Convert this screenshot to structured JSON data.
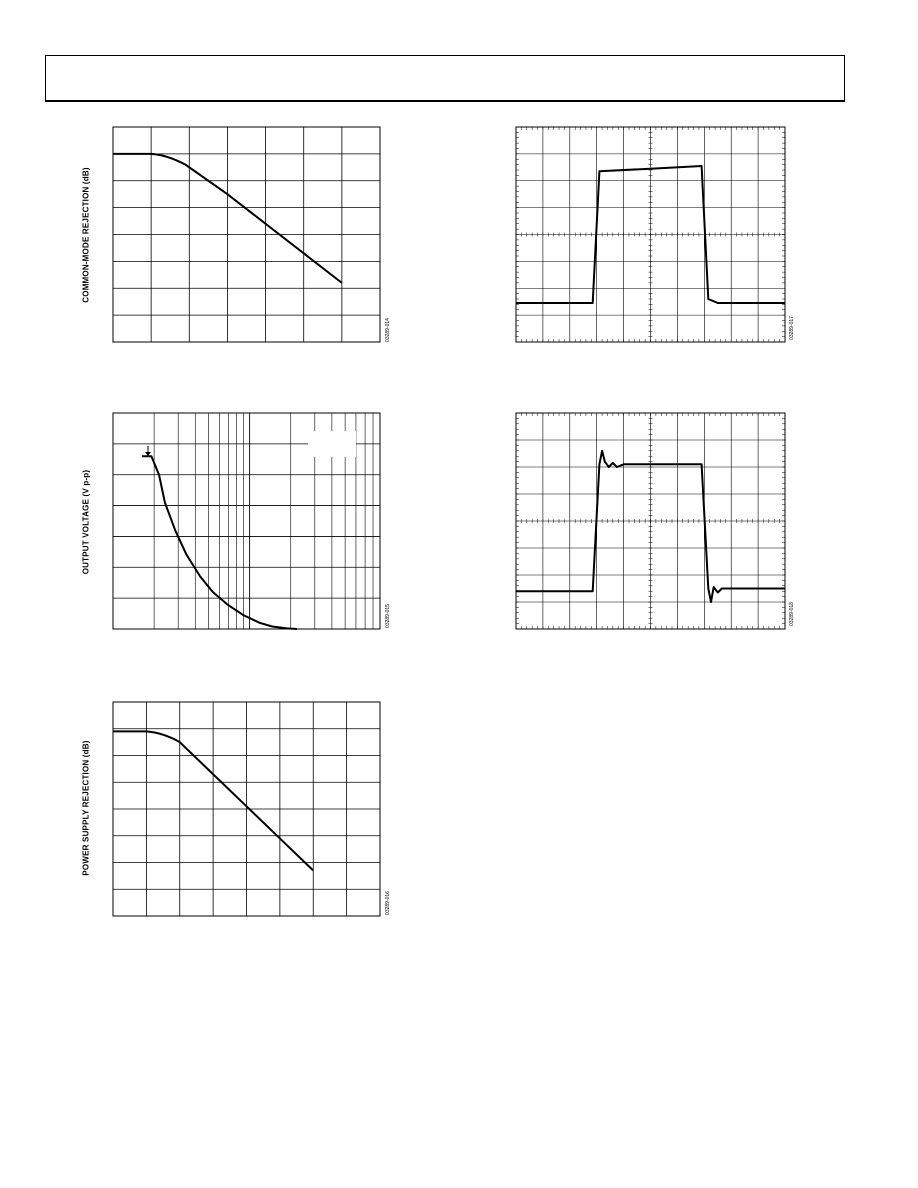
{
  "labels": {
    "cmr_ylabel": "COMMON-MODE REJECTION (dB)",
    "output_voltage_ylabel": "OUTPUT VOLTAGE (V p-p)",
    "psr_ylabel": "POWER SUPPLY REJECTION (dB)"
  },
  "figure_ids": {
    "cmr": "03289-014",
    "output_voltage": "03289-015",
    "psr": "03289-016",
    "pulse_large": "03289-017",
    "pulse_small": "03289-018"
  },
  "chart_data": [
    {
      "type": "line",
      "ylabel": "COMMON-MODE REJECTION (dB)",
      "x_divisions": 7,
      "y_divisions": 8,
      "series": [
        {
          "x": [
            0,
            1.0,
            1.4,
            1.9,
            3.0,
            4.0,
            5.0,
            6.0
          ],
          "y": [
            7.0,
            7.0,
            6.97,
            6.6,
            5.5,
            4.4,
            3.3,
            2.2
          ]
        }
      ]
    },
    {
      "type": "line",
      "ylabel": "OUTPUT VOLTAGE (V p-p)",
      "x_scale": "log",
      "y_divisions": 7,
      "series": [
        {
          "x": [
            1,
            1.18,
            1.35,
            1.5,
            1.8,
            2.2,
            2.8,
            3.5,
            4.5,
            6,
            8,
            10,
            13,
            15.5
          ],
          "y": [
            5.6,
            5.6,
            5.0,
            4.1,
            3.2,
            2.4,
            1.7,
            1.2,
            0.8,
            0.45,
            0.2,
            0.08,
            0.02,
            0.0
          ]
        }
      ]
    },
    {
      "type": "line",
      "ylabel": "POWER SUPPLY REJECTION (dB)",
      "x_divisions": 8,
      "y_divisions": 8,
      "series": [
        {
          "x": [
            0,
            1.0,
            1.5,
            2.0,
            3.0,
            4.0,
            5.0,
            6.0
          ],
          "y": [
            6.9,
            6.9,
            6.85,
            6.5,
            5.3,
            4.1,
            2.9,
            1.7
          ]
        }
      ]
    },
    {
      "type": "line",
      "x_divisions": 10,
      "y_divisions": 8,
      "series": [
        {
          "x": [
            0,
            2.85,
            3.1,
            5.0,
            6.9,
            7.15,
            7.5,
            10
          ],
          "y": [
            1.45,
            1.45,
            6.35,
            6.45,
            6.55,
            1.6,
            1.45,
            1.45
          ]
        }
      ]
    },
    {
      "type": "line",
      "x_divisions": 10,
      "y_divisions": 8,
      "series": [
        {
          "x": [
            0,
            2.85,
            3.1,
            3.2,
            3.3,
            3.45,
            3.6,
            3.75,
            4.0,
            6.9,
            7.15,
            7.25,
            7.35,
            7.5,
            7.65,
            7.8,
            10
          ],
          "y": [
            1.4,
            1.4,
            6.1,
            6.6,
            6.2,
            6.0,
            6.15,
            6.0,
            6.1,
            6.1,
            1.5,
            1.0,
            1.55,
            1.35,
            1.5,
            1.5,
            1.5
          ]
        }
      ]
    }
  ]
}
